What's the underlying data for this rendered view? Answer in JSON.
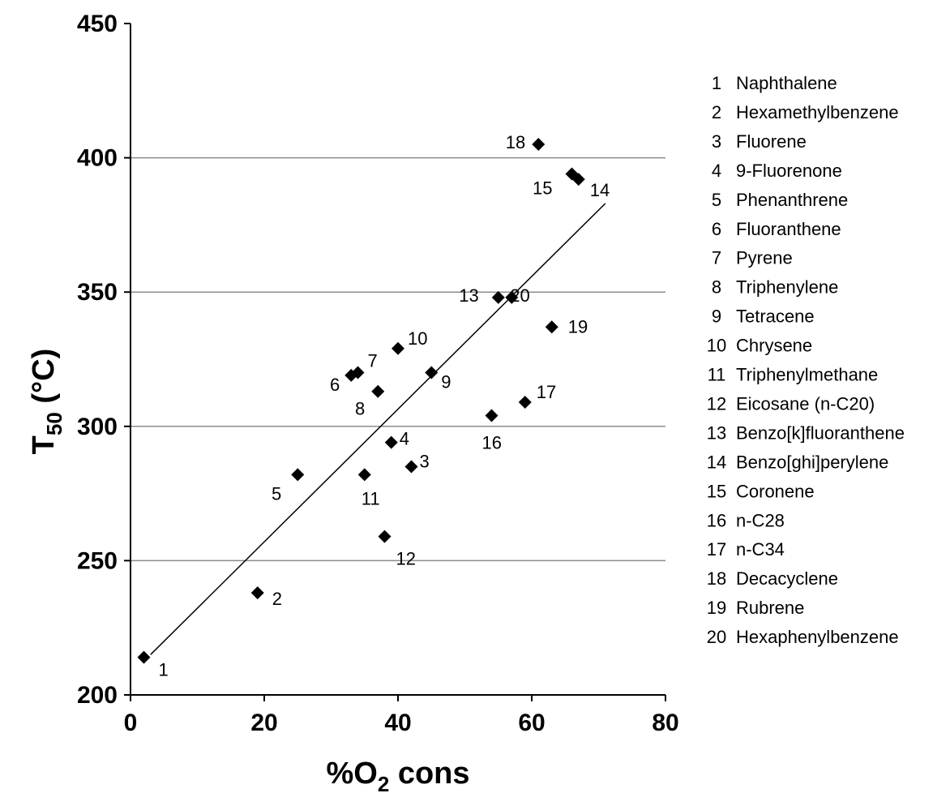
{
  "chart_data": {
    "type": "scatter",
    "xlabel": {
      "main": "%O",
      "sub": "2",
      "rest": " cons"
    },
    "ylabel": {
      "main": "T",
      "sub": "50",
      "rest": " (°C)"
    },
    "xlim": [
      0,
      80
    ],
    "ylim": [
      200,
      450
    ],
    "xticks": [
      0,
      20,
      40,
      60,
      80
    ],
    "yticks": [
      200,
      250,
      300,
      350,
      400,
      450
    ],
    "horizontal_grid": true,
    "marker": "diamond",
    "trendline": {
      "type": "linear",
      "x": [
        3,
        71
      ],
      "y": [
        215,
        383
      ]
    },
    "points": [
      {
        "id": "1",
        "x": 2,
        "y": 214
      },
      {
        "id": "2",
        "x": 19,
        "y": 238
      },
      {
        "id": "3",
        "x": 42,
        "y": 285
      },
      {
        "id": "4",
        "x": 39,
        "y": 294
      },
      {
        "id": "5",
        "x": 25,
        "y": 282
      },
      {
        "id": "6",
        "x": 33,
        "y": 319
      },
      {
        "id": "7",
        "x": 34,
        "y": 320
      },
      {
        "id": "8",
        "x": 37,
        "y": 313
      },
      {
        "id": "9",
        "x": 45,
        "y": 320
      },
      {
        "id": "10",
        "x": 40,
        "y": 329
      },
      {
        "id": "11",
        "x": 35,
        "y": 282
      },
      {
        "id": "12",
        "x": 38,
        "y": 259
      },
      {
        "id": "13",
        "x": 55,
        "y": 348
      },
      {
        "id": "14",
        "x": 67,
        "y": 392
      },
      {
        "id": "15",
        "x": 66,
        "y": 394
      },
      {
        "id": "16",
        "x": 54,
        "y": 304
      },
      {
        "id": "17",
        "x": 59,
        "y": 309
      },
      {
        "id": "18",
        "x": 61,
        "y": 405
      },
      {
        "id": "19",
        "x": 63,
        "y": 337
      },
      {
        "id": "20",
        "x": 57,
        "y": 348
      }
    ],
    "legend": [
      {
        "id": "1",
        "name": "Naphthalene"
      },
      {
        "id": "2",
        "name": "Hexamethylbenzene"
      },
      {
        "id": "3",
        "name": "Fluorene"
      },
      {
        "id": "4",
        "name": "9-Fluorenone"
      },
      {
        "id": "5",
        "name": "Phenanthrene"
      },
      {
        "id": "6",
        "name": "Fluoranthene"
      },
      {
        "id": "7",
        "name": "Pyrene"
      },
      {
        "id": "8",
        "name": "Triphenylene"
      },
      {
        "id": "9",
        "name": "Tetracene"
      },
      {
        "id": "10",
        "name": "Chrysene"
      },
      {
        "id": "11",
        "name": "Triphenylmethane"
      },
      {
        "id": "12",
        "name": "Eicosane (n-C20)"
      },
      {
        "id": "13",
        "name": "Benzo[k]fluoranthene"
      },
      {
        "id": "14",
        "name": "Benzo[ghi]perylene"
      },
      {
        "id": "15",
        "name": "Coronene"
      },
      {
        "id": "16",
        "name": "n-C28"
      },
      {
        "id": "17",
        "name": "n-C34"
      },
      {
        "id": "18",
        "name": "Decacyclene"
      },
      {
        "id": "19",
        "name": "Rubrene"
      },
      {
        "id": "20",
        "name": "Hexaphenylbenzene"
      }
    ],
    "legend_placement": "right"
  }
}
